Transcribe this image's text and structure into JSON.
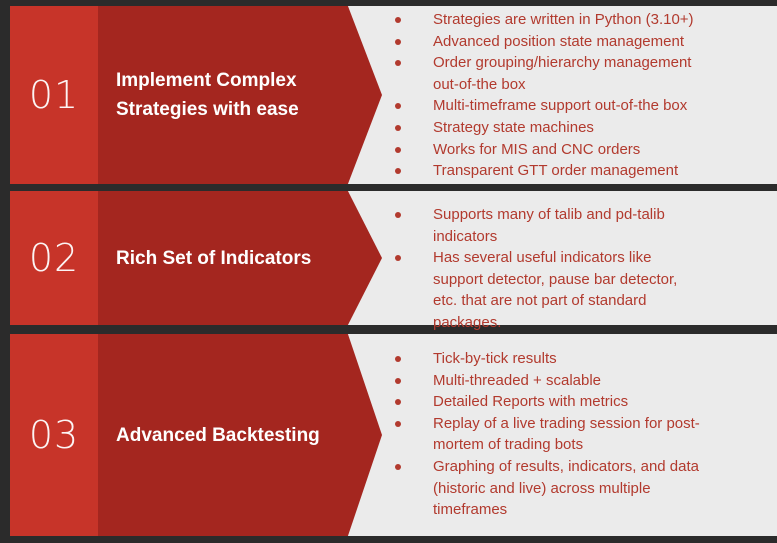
{
  "rows": [
    {
      "number": "01",
      "title": "Implement Complex Strategies with ease",
      "items": [
        "Strategies are written in Python (3.10+)",
        "Advanced position state management",
        "Order grouping/hierarchy management out-of-the box",
        "Multi-timeframe support out-of-the box",
        "Strategy state machines",
        "Works for MIS and CNC orders",
        "Transparent GTT order management"
      ]
    },
    {
      "number": "02",
      "title": "Rich Set of Indicators",
      "items": [
        "Supports many of talib and pd-talib indicators",
        "Has several useful indicators like support detector, pause bar detector, etc. that are not part of standard packages."
      ]
    },
    {
      "number": "03",
      "title": "Advanced Backtesting",
      "items": [
        "Tick-by-tick results",
        "Multi-threaded + scalable",
        "Detailed Reports with metrics",
        "Replay of a live trading session for post-mortem of trading bots",
        "Graphing of results, indicators, and data (historic and live) across multiple timeframes"
      ]
    }
  ],
  "colors": {
    "background": "#2b2b2b",
    "number_block": "#c73429",
    "chevron": "#a4261f",
    "panel": "#ebebeb",
    "item_text": "#b23a2e"
  }
}
